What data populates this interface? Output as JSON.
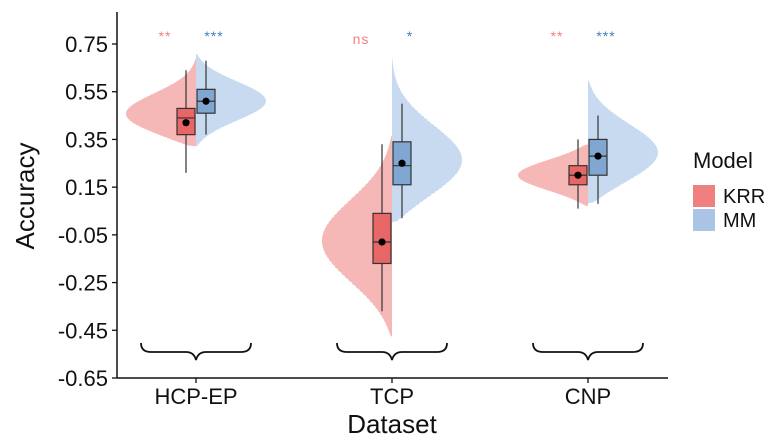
{
  "chart_data": {
    "type": "violin",
    "title": "",
    "xlabel": "Dataset",
    "ylabel": "Accuracy",
    "categories": [
      "HCP-EP",
      "TCP",
      "CNP"
    ],
    "ylim": [
      -0.65,
      0.85
    ],
    "yticks": [
      "0.75",
      "0.55",
      "0.35",
      "0.15",
      "-0.05",
      "-0.25",
      "-0.45",
      "-0.65"
    ],
    "ytick_values": [
      0.75,
      0.55,
      0.35,
      0.15,
      -0.05,
      -0.25,
      -0.45,
      -0.65
    ],
    "grid": false,
    "legend": {
      "title": "Model",
      "position": "right",
      "entries": [
        {
          "label": "KRR",
          "color": "#F08080"
        },
        {
          "label": "MM",
          "color": "#A9C4E4"
        }
      ]
    },
    "series": [
      {
        "name": "KRR",
        "color": "#F08080",
        "violin_color": "#F4AAAA",
        "box_fill": "#E96666",
        "side": "left",
        "groups": [
          {
            "category": "HCP-EP",
            "q1": 0.37,
            "median": 0.44,
            "q3": 0.48,
            "whisker_low": 0.21,
            "whisker_high": 0.64,
            "mean": 0.42,
            "violin_min": 0.32,
            "violin_max": 0.69
          },
          {
            "category": "TCP",
            "q1": -0.17,
            "median": -0.08,
            "q3": 0.04,
            "whisker_low": -0.37,
            "whisker_high": 0.33,
            "mean": -0.08,
            "violin_min": -0.48,
            "violin_max": 0.37
          },
          {
            "category": "CNP",
            "q1": 0.16,
            "median": 0.2,
            "q3": 0.24,
            "whisker_low": 0.06,
            "whisker_high": 0.35,
            "mean": 0.2,
            "violin_min": 0.07,
            "violin_max": 0.33
          }
        ]
      },
      {
        "name": "MM",
        "color": "#A9C4E4",
        "violin_color": "#BDD3EC",
        "box_fill": "#7FA7D2",
        "side": "right",
        "groups": [
          {
            "category": "HCP-EP",
            "q1": 0.46,
            "median": 0.51,
            "q3": 0.56,
            "whisker_low": 0.37,
            "whisker_high": 0.68,
            "mean": 0.51,
            "violin_min": 0.32,
            "violin_max": 0.71
          },
          {
            "category": "TCP",
            "q1": 0.16,
            "median": 0.24,
            "q3": 0.34,
            "whisker_low": 0.02,
            "whisker_high": 0.5,
            "mean": 0.25,
            "violin_min": 0.0,
            "violin_max": 0.7
          },
          {
            "category": "CNP",
            "q1": 0.2,
            "median": 0.28,
            "q3": 0.35,
            "whisker_low": 0.08,
            "whisker_high": 0.45,
            "mean": 0.28,
            "violin_min": 0.08,
            "violin_max": 0.6
          }
        ]
      }
    ],
    "annotations": [
      {
        "category": "HCP-EP",
        "series": "KRR",
        "text": "**",
        "color": "#F08080"
      },
      {
        "category": "HCP-EP",
        "series": "MM",
        "text": "***",
        "color": "#3F7FBF"
      },
      {
        "category": "TCP",
        "series": "KRR",
        "text": "ns",
        "color": "#F08080"
      },
      {
        "category": "TCP",
        "series": "MM",
        "text": "*",
        "color": "#3F7FBF"
      },
      {
        "category": "CNP",
        "series": "KRR",
        "text": "**",
        "color": "#F08080"
      },
      {
        "category": "CNP",
        "series": "MM",
        "text": "***",
        "color": "#3F7FBF"
      }
    ]
  }
}
